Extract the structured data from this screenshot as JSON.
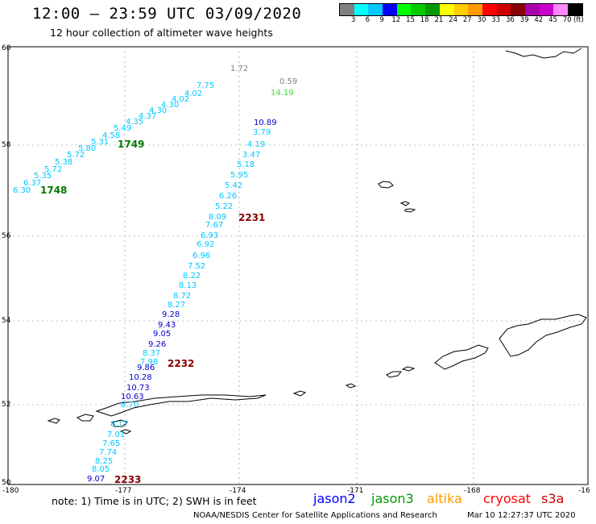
{
  "title": "12:00 — 23:59 UTC 03/09/2020",
  "subtitle": "12 hour collection of altimeter wave heights",
  "legend": {
    "colors": [
      "#808080",
      "#00ffff",
      "#00c8ff",
      "#0000ff",
      "#00ff00",
      "#00cc00",
      "#009900",
      "#ffff00",
      "#ffcc00",
      "#ff9900",
      "#ff0000",
      "#cc0000",
      "#880000",
      "#aa00aa",
      "#cc00cc",
      "#ff88ff",
      "#000000"
    ],
    "labels": [
      "3",
      "6",
      "9",
      "12",
      "15",
      "18",
      "21",
      "24",
      "27",
      "30",
      "33",
      "36",
      "39",
      "42",
      "45",
      "70"
    ],
    "unit": "(ft)"
  },
  "axes": {
    "lon_labels": [
      "-180",
      "-177",
      "-174",
      "-171",
      "-168",
      "-16"
    ],
    "lat_labels": [
      "60",
      "58",
      "56",
      "54",
      "52",
      "50"
    ]
  },
  "readings": [
    {
      "t": "1.72",
      "c": "#808080"
    },
    {
      "t": "0.59",
      "c": "#808080"
    },
    {
      "t": "14.19",
      "c": "#33dd33"
    },
    {
      "t": "7.75",
      "c": "#00c8ff"
    },
    {
      "t": "4.02",
      "c": "#00c8ff"
    },
    {
      "t": "4.02",
      "c": "#00c8ff"
    },
    {
      "t": "4.30",
      "c": "#00c8ff"
    },
    {
      "t": "4.30",
      "c": "#00c8ff"
    },
    {
      "t": "4.37",
      "c": "#00c8ff"
    },
    {
      "t": "4.35",
      "c": "#00c8ff"
    },
    {
      "t": "5.49",
      "c": "#00c8ff"
    },
    {
      "t": "4.58",
      "c": "#00c8ff"
    },
    {
      "t": "5.31",
      "c": "#00c8ff"
    },
    {
      "t": "5.80",
      "c": "#00c8ff"
    },
    {
      "t": "5.72",
      "c": "#00c8ff"
    },
    {
      "t": "5.38",
      "c": "#00c8ff"
    },
    {
      "t": "5.72",
      "c": "#00c8ff"
    },
    {
      "t": "5.35",
      "c": "#00c8ff"
    },
    {
      "t": "6.37",
      "c": "#00c8ff"
    },
    {
      "t": "6.30",
      "c": "#00c8ff"
    },
    {
      "t": "10.89",
      "c": "#0000cc"
    },
    {
      "t": "3.79",
      "c": "#00c8ff"
    },
    {
      "t": "4.19",
      "c": "#00c8ff"
    },
    {
      "t": "3.47",
      "c": "#00c8ff"
    },
    {
      "t": "5.18",
      "c": "#00c8ff"
    },
    {
      "t": "5.95",
      "c": "#00c8ff"
    },
    {
      "t": "5.42",
      "c": "#00c8ff"
    },
    {
      "t": "6.26",
      "c": "#00c8ff"
    },
    {
      "t": "5.22",
      "c": "#00c8ff"
    },
    {
      "t": "8.09",
      "c": "#00c8ff"
    },
    {
      "t": "7.67",
      "c": "#00c8ff"
    },
    {
      "t": "6.93",
      "c": "#00c8ff"
    },
    {
      "t": "6.92",
      "c": "#00c8ff"
    },
    {
      "t": "6.96",
      "c": "#00c8ff"
    },
    {
      "t": "7.52",
      "c": "#00c8ff"
    },
    {
      "t": "8.22",
      "c": "#00c8ff"
    },
    {
      "t": "8.13",
      "c": "#00c8ff"
    },
    {
      "t": "8.72",
      "c": "#00c8ff"
    },
    {
      "t": "8.27",
      "c": "#00c8ff"
    },
    {
      "t": "9.28",
      "c": "#0000cc"
    },
    {
      "t": "9.43",
      "c": "#0000cc"
    },
    {
      "t": "9.05",
      "c": "#0000cc"
    },
    {
      "t": "9.26",
      "c": "#0000cc"
    },
    {
      "t": "8.37",
      "c": "#00c8ff"
    },
    {
      "t": "7.98",
      "c": "#00c8ff"
    },
    {
      "t": "9.86",
      "c": "#0000cc"
    },
    {
      "t": "10.28",
      "c": "#0000cc"
    },
    {
      "t": "10.73",
      "c": "#0000cc"
    },
    {
      "t": "10.63",
      "c": "#0000cc"
    },
    {
      "t": "8.70",
      "c": "#00c8ff"
    },
    {
      "t": "8.17",
      "c": "#00c8ff"
    },
    {
      "t": "7.01",
      "c": "#00c8ff"
    },
    {
      "t": "7.65",
      "c": "#00c8ff"
    },
    {
      "t": "7.74",
      "c": "#00c8ff"
    },
    {
      "t": "8.25",
      "c": "#00c8ff"
    },
    {
      "t": "8.05",
      "c": "#00c8ff"
    },
    {
      "t": "9.07",
      "c": "#0000cc"
    }
  ],
  "time_stamps": [
    {
      "t": "1749",
      "c": "#007700"
    },
    {
      "t": "1748",
      "c": "#007700"
    },
    {
      "t": "2231",
      "c": "#880000"
    },
    {
      "t": "2232",
      "c": "#880000"
    },
    {
      "t": "2233",
      "c": "#880000"
    }
  ],
  "note": "note:  1) Time is in UTC;  2) SWH is in feet",
  "satellites": [
    {
      "name": "jason2",
      "color": "#0000ff"
    },
    {
      "name": "jason3",
      "color": "#009900"
    },
    {
      "name": "altika",
      "color": "#ff9900"
    },
    {
      "name": "cryosat",
      "color": "#ff0000"
    },
    {
      "name": "s3a",
      "color": "#cc0000"
    }
  ],
  "footer_left": "NOAA/NESDIS Center for Satellite Applications and Research",
  "footer_right": "Mar 10 12:27:37 UTC 2020"
}
